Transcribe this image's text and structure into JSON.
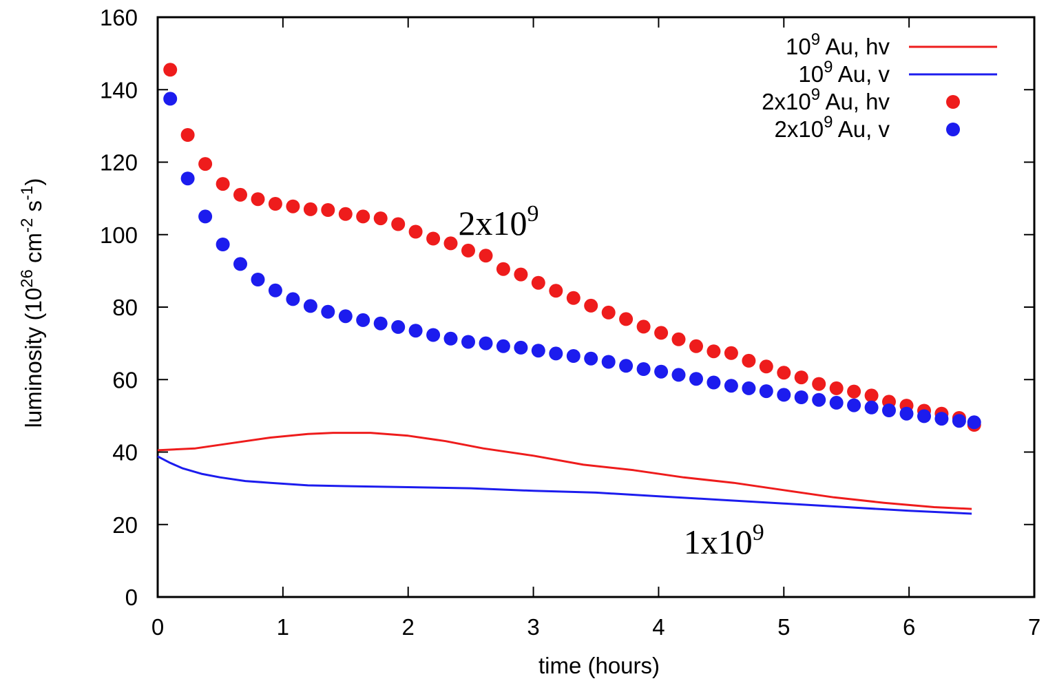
{
  "chart_data": {
    "type": "scatter",
    "xlabel": "time (hours)",
    "ylabel": {
      "prefix": "luminosity (10",
      "sup1": "26",
      "mid1": " cm",
      "sup2": "-2",
      "mid2": " s",
      "sup3": "-1",
      "suffix": ")"
    },
    "xlim": [
      0,
      7
    ],
    "ylim": [
      0,
      160
    ],
    "x_ticks": [
      0,
      1,
      2,
      3,
      4,
      5,
      6,
      7
    ],
    "y_ticks": [
      0,
      20,
      40,
      60,
      80,
      100,
      120,
      140,
      160
    ],
    "grid": false,
    "legend_position": "top-right",
    "annotations": [
      {
        "base": "2x10",
        "sup": "9",
        "x": 2.4,
        "y": 100
      },
      {
        "base": "1x10",
        "sup": "9",
        "x": 4.2,
        "y": 12
      }
    ],
    "series": [
      {
        "name": {
          "pre": "10",
          "sup": "9",
          "post": " Au, hv"
        },
        "style": "line",
        "color": "#ee1c1c",
        "x": [
          0.0,
          0.3,
          0.6,
          0.9,
          1.2,
          1.4,
          1.7,
          2.0,
          2.3,
          2.6,
          3.0,
          3.4,
          3.8,
          4.2,
          4.6,
          5.0,
          5.4,
          5.8,
          6.2,
          6.5
        ],
        "y": [
          40.5,
          41.0,
          42.5,
          44.0,
          45.0,
          45.3,
          45.3,
          44.5,
          43.0,
          41.0,
          39.0,
          36.5,
          35.0,
          33.0,
          31.5,
          29.5,
          27.5,
          26.0,
          24.8,
          24.3
        ]
      },
      {
        "name": {
          "pre": "10",
          "sup": "9",
          "post": " Au, v"
        },
        "style": "line",
        "color": "#1c1cee",
        "x": [
          0.0,
          0.1,
          0.2,
          0.35,
          0.5,
          0.7,
          0.9,
          1.2,
          1.5,
          2.0,
          2.5,
          3.0,
          3.5,
          4.0,
          4.5,
          5.0,
          5.5,
          6.0,
          6.5
        ],
        "y": [
          38.8,
          37.0,
          35.5,
          34.0,
          33.0,
          32.0,
          31.5,
          30.8,
          30.6,
          30.3,
          30.0,
          29.3,
          28.8,
          27.8,
          26.8,
          25.8,
          24.8,
          23.8,
          23.0
        ]
      },
      {
        "name": {
          "pre": "2x10",
          "sup": "9",
          "post": " Au, hv"
        },
        "style": "points",
        "color": "#ee1c1c",
        "x": [
          0.1,
          0.24,
          0.38,
          0.52,
          0.66,
          0.8,
          0.94,
          1.08,
          1.22,
          1.36,
          1.5,
          1.64,
          1.78,
          1.92,
          2.06,
          2.2,
          2.34,
          2.48,
          2.62,
          2.76,
          2.9,
          3.04,
          3.18,
          3.32,
          3.46,
          3.6,
          3.74,
          3.88,
          4.02,
          4.16,
          4.3,
          4.44,
          4.58,
          4.72,
          4.86,
          5.0,
          5.14,
          5.28,
          5.42,
          5.56,
          5.7,
          5.84,
          5.98,
          6.12,
          6.26,
          6.4,
          6.52
        ],
        "y": [
          145.5,
          127.5,
          119.5,
          114.0,
          111.0,
          109.8,
          108.5,
          107.8,
          107.0,
          106.8,
          105.7,
          105.0,
          104.5,
          102.9,
          100.8,
          98.9,
          97.6,
          95.6,
          94.2,
          90.5,
          89.0,
          86.7,
          84.5,
          82.5,
          80.4,
          78.5,
          76.7,
          74.6,
          72.9,
          71.1,
          69.2,
          67.8,
          67.3,
          65.2,
          63.6,
          61.9,
          60.6,
          58.8,
          57.6,
          56.7,
          55.6,
          53.9,
          52.8,
          51.4,
          50.6,
          49.4,
          47.5
        ]
      },
      {
        "name": {
          "pre": "2x10",
          "sup": "9",
          "post": " Au, v"
        },
        "style": "points",
        "color": "#1c1cee",
        "x": [
          0.1,
          0.24,
          0.38,
          0.52,
          0.66,
          0.8,
          0.94,
          1.08,
          1.22,
          1.36,
          1.5,
          1.64,
          1.78,
          1.92,
          2.06,
          2.2,
          2.34,
          2.48,
          2.62,
          2.76,
          2.9,
          3.04,
          3.18,
          3.32,
          3.46,
          3.6,
          3.74,
          3.88,
          4.02,
          4.16,
          4.3,
          4.44,
          4.58,
          4.72,
          4.86,
          5.0,
          5.14,
          5.28,
          5.42,
          5.56,
          5.7,
          5.84,
          5.98,
          6.12,
          6.26,
          6.4,
          6.52
        ],
        "y": [
          137.5,
          115.5,
          105.0,
          97.3,
          91.9,
          87.6,
          84.6,
          82.2,
          80.3,
          78.7,
          77.5,
          76.4,
          75.5,
          74.5,
          73.5,
          72.3,
          71.3,
          70.4,
          70.0,
          69.2,
          68.8,
          68.0,
          67.2,
          66.5,
          65.8,
          64.9,
          63.8,
          62.9,
          62.2,
          61.3,
          60.2,
          59.2,
          58.3,
          57.6,
          56.8,
          55.8,
          55.1,
          54.4,
          53.6,
          52.9,
          52.3,
          51.5,
          50.6,
          49.9,
          49.2,
          48.6,
          48.2
        ]
      }
    ]
  }
}
